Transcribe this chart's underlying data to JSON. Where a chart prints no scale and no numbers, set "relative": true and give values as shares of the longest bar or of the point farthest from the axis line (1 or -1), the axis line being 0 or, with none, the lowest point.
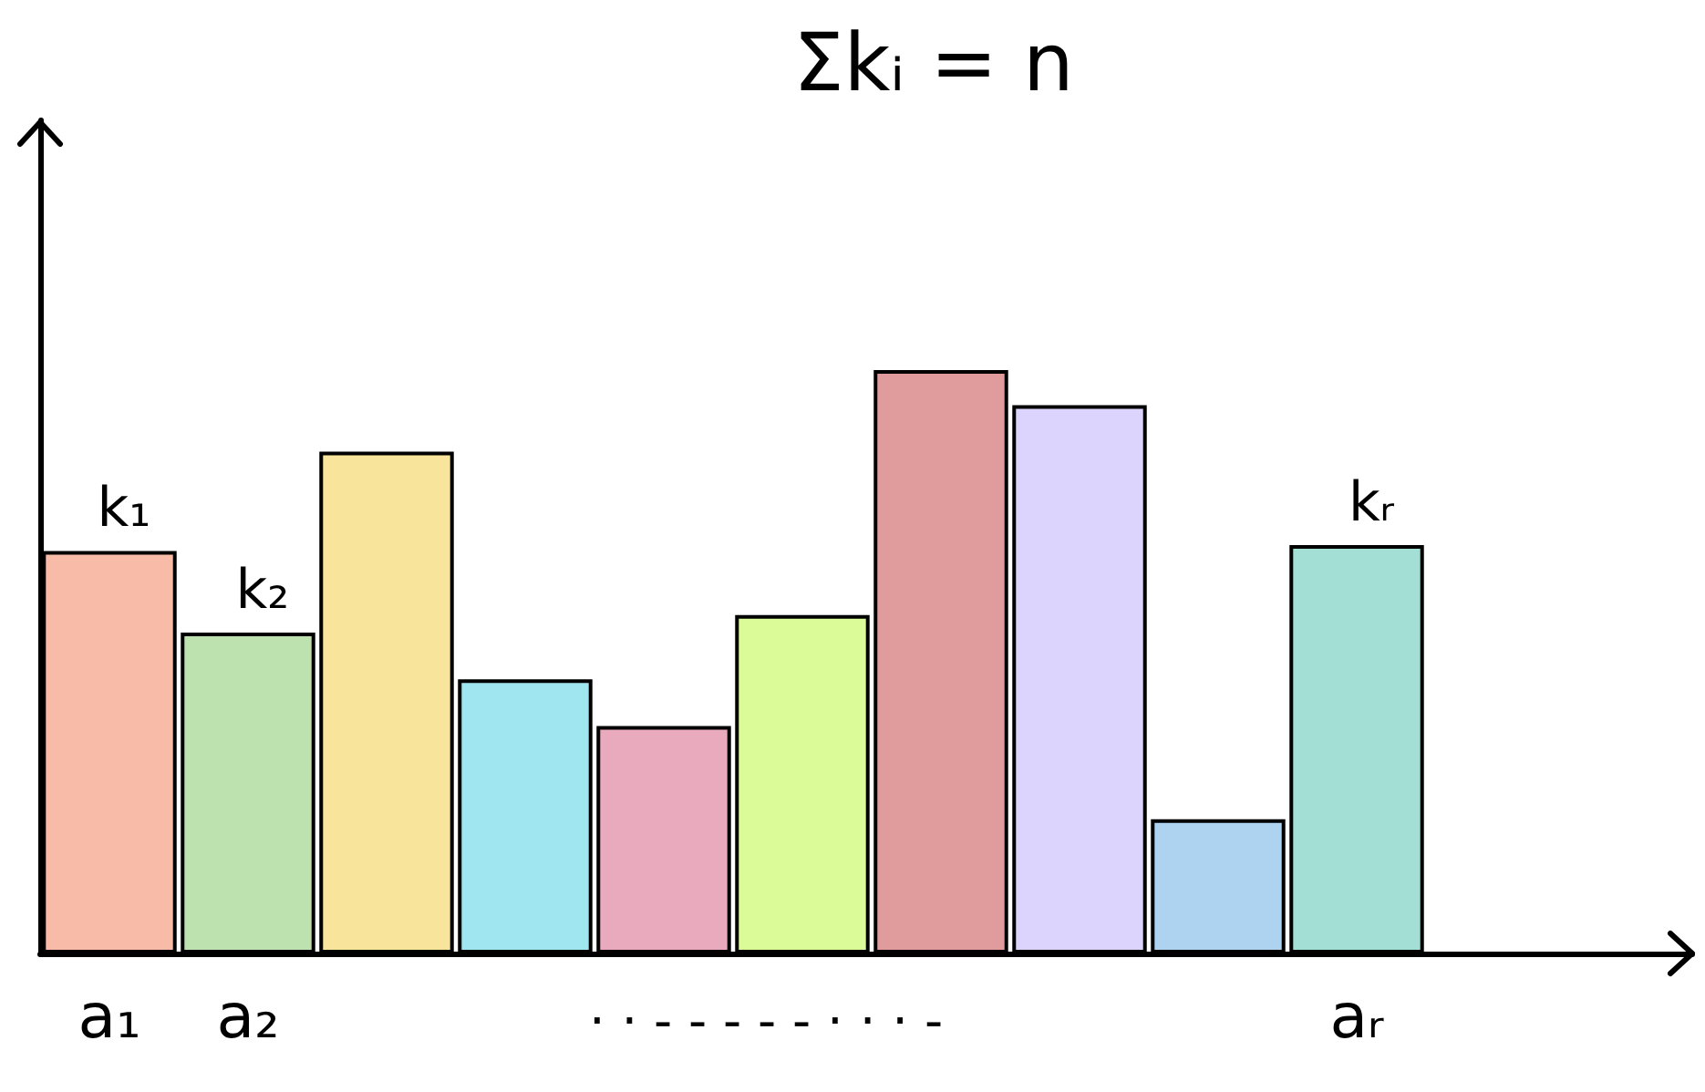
{
  "chart_data": {
    "type": "bar",
    "relative": true,
    "title": "Σkᵢ = n",
    "categories": [
      "a₁",
      "a₂",
      null,
      null,
      null,
      null,
      null,
      null,
      null,
      "aᵣ"
    ],
    "values": [
      0.69,
      0.55,
      0.86,
      0.47,
      0.39,
      0.58,
      1,
      0.94,
      0.23,
      0.7
    ],
    "colors": [
      "#f7bba8",
      "#bde2b0",
      "#f9e49c",
      "#9fe6f0",
      "#e9aabe",
      "#dbfb98",
      "#e09c9c",
      "#dcd4fd",
      "#aed3f0",
      "#a3dfd5"
    ],
    "annotations": [
      {
        "text": "k₁",
        "x": "a₁",
        "y": 0.69
      },
      {
        "text": "k₂",
        "x": "a₂",
        "y": 0.55
      },
      {
        "text": "kᵣ",
        "x": "aᵣ",
        "y": 0.7
      },
      "· · - - - - - · · · -"
    ],
    "grid": false
  }
}
